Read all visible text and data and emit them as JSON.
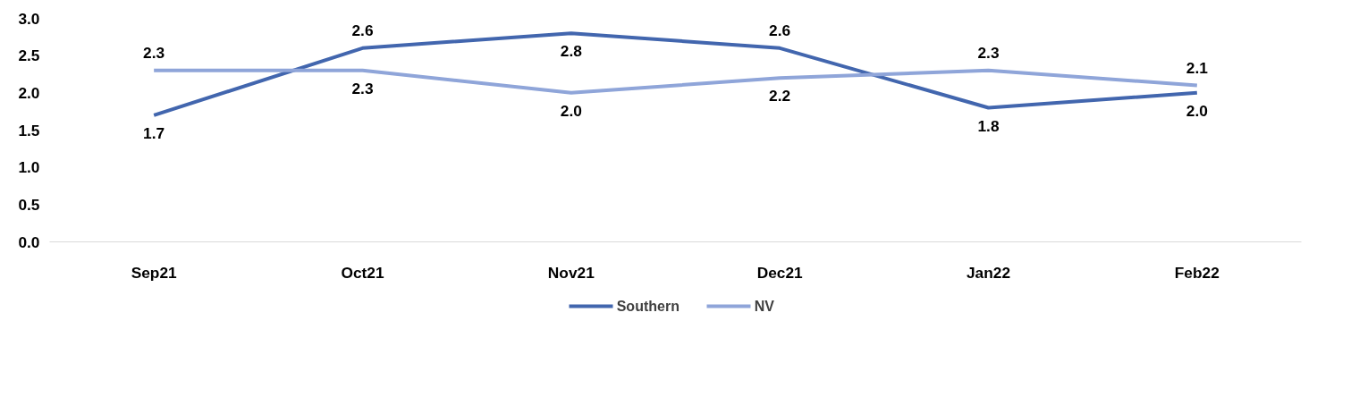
{
  "chart_data": {
    "type": "line",
    "categories": [
      "Sep21",
      "Oct21",
      "Nov21",
      "Dec21",
      "Jan22",
      "Feb22"
    ],
    "series": [
      {
        "name": "Southern",
        "color": "#4266ae",
        "values": [
          1.7,
          2.6,
          2.8,
          2.6,
          1.8,
          2.0
        ],
        "value_labels": [
          "1.7",
          "2.6",
          "2.8",
          "2.6",
          "1.8",
          "2.0"
        ]
      },
      {
        "name": "NV",
        "color": "#8fa5d9",
        "values": [
          2.3,
          2.3,
          2.0,
          2.2,
          2.3,
          2.1
        ],
        "value_labels": [
          "2.3",
          "2.3",
          "2.0",
          "2.2",
          "2.3",
          "2.1"
        ]
      }
    ],
    "ylim": [
      0,
      3
    ],
    "yticks": [
      {
        "value": 0,
        "label": "0.0"
      },
      {
        "value": 0.5,
        "label": "0.5"
      },
      {
        "value": 1,
        "label": "1.0"
      },
      {
        "value": 1.5,
        "label": "1.5"
      },
      {
        "value": 2,
        "label": "2.0"
      },
      {
        "value": 2.5,
        "label": "2.5"
      },
      {
        "value": 3,
        "label": "3.0"
      }
    ],
    "legend": "bottom",
    "line_style": "solid"
  }
}
